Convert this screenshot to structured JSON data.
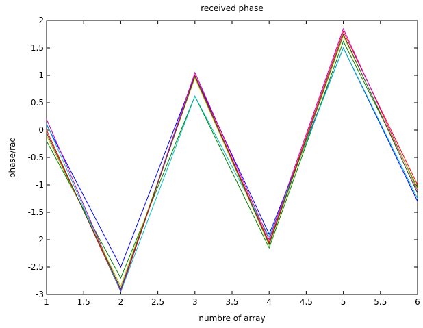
{
  "chart_data": {
    "type": "line",
    "title": "received phase",
    "xlabel": "numbre of array",
    "ylabel": "phase/rad",
    "xlim": [
      1,
      6
    ],
    "ylim": [
      -3,
      2
    ],
    "xticks": [
      "1",
      "1.5",
      "2",
      "2.5",
      "3",
      "3.5",
      "4",
      "4.5",
      "5",
      "5.5",
      "6"
    ],
    "yticks": [
      "2",
      "1.5",
      "1",
      "0.5",
      "0",
      "-0.5",
      "-1",
      "-1.5",
      "-2",
      "-2.5",
      "-3"
    ],
    "grid": false,
    "x": [
      1,
      2,
      3,
      4,
      5,
      6
    ],
    "series": [
      {
        "color": "#0000ff",
        "values": [
          0.1,
          -2.5,
          1.0,
          -1.9,
          1.5,
          -1.3
        ]
      },
      {
        "color": "#008000",
        "values": [
          -0.2,
          -2.7,
          0.62,
          -2.15,
          1.62,
          -1.05
        ]
      },
      {
        "color": "#ff0000",
        "values": [
          0.0,
          -2.95,
          1.0,
          -2.05,
          1.8,
          -1.0
        ]
      },
      {
        "color": "#00bfbf",
        "values": [
          0.12,
          -2.95,
          0.62,
          -1.95,
          1.5,
          -1.25
        ]
      },
      {
        "color": "#bf00bf",
        "values": [
          0.2,
          -2.93,
          1.05,
          -2.0,
          1.85,
          -1.1
        ]
      },
      {
        "color": "#bfbf00",
        "values": [
          -0.1,
          -2.85,
          0.95,
          -2.1,
          1.72,
          -1.08
        ]
      },
      {
        "color": "#404040",
        "values": [
          -0.05,
          -2.9,
          0.98,
          -2.08,
          1.75,
          -1.15
        ]
      }
    ]
  }
}
